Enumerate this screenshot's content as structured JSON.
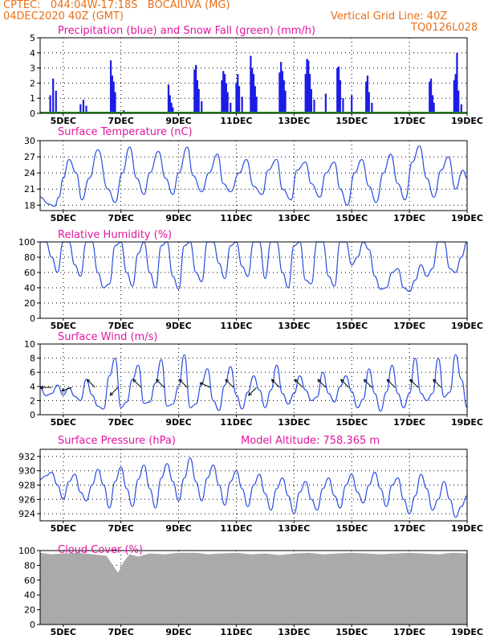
{
  "header": {
    "line1": "CPTEC:   044:04W-17:18S   BOCAIUVA (MG)",
    "line2": "04DEC2020 40Z (GMT)",
    "grid_line": "Vertical Grid Line: 40Z",
    "code": "TQ0126L028"
  },
  "colors": {
    "header": "#e8701a",
    "title": "#e0169e",
    "line": "#2b4ee0",
    "precip": "#1c1ce6",
    "snow": "#1f9e1f",
    "cloud": "#aaaaaa"
  },
  "x_ticks": [
    "5DEC",
    "7DEC",
    "9DEC",
    "11DEC",
    "13DEC",
    "15DEC",
    "17DEC",
    "19DEC"
  ],
  "x_tick_days": [
    5,
    7,
    9,
    11,
    13,
    15,
    17,
    19
  ],
  "x_range": [
    4.2,
    19.0
  ],
  "chart_data": [
    {
      "type": "bar",
      "title": "Precipitation (blue) and Snow Fall (green) (mm/h)",
      "ylim": [
        0,
        5
      ],
      "yticks": [
        0,
        1,
        2,
        3,
        4,
        5
      ],
      "x": [
        4.55,
        4.65,
        4.75,
        5.6,
        5.7,
        5.8,
        6.65,
        6.7,
        6.75,
        6.8,
        7.1,
        8.65,
        8.7,
        8.75,
        8.8,
        9.55,
        9.6,
        9.65,
        9.7,
        9.8,
        10.5,
        10.55,
        10.6,
        10.65,
        10.7,
        10.8,
        11.0,
        11.05,
        11.1,
        11.2,
        11.5,
        11.55,
        11.6,
        11.65,
        11.7,
        12.5,
        12.55,
        12.6,
        12.65,
        12.7,
        13.4,
        13.45,
        13.5,
        13.55,
        13.6,
        13.7,
        14.1,
        14.5,
        14.55,
        14.6,
        14.7,
        15.0,
        15.5,
        15.55,
        15.6,
        15.7,
        17.7,
        17.75,
        17.8,
        17.85,
        18.55,
        18.6,
        18.65,
        18.7,
        18.8
      ],
      "values": [
        1.2,
        2.3,
        1.5,
        0.6,
        0.9,
        0.5,
        3.5,
        2.5,
        2.1,
        1.4,
        0.2,
        1.9,
        1.2,
        0.7,
        0.4,
        2.9,
        3.2,
        2.2,
        1.6,
        0.8,
        2.2,
        2.8,
        2.6,
        2.0,
        1.4,
        0.7,
        2.0,
        2.6,
        1.8,
        1.1,
        3.8,
        3.0,
        2.6,
        1.8,
        1.1,
        2.7,
        3.4,
        2.8,
        2.2,
        1.5,
        2.6,
        3.6,
        3.5,
        2.6,
        1.6,
        0.9,
        1.3,
        3.0,
        3.1,
        2.2,
        1.0,
        1.2,
        2.1,
        2.5,
        1.4,
        0.7,
        2.1,
        2.3,
        1.2,
        0.7,
        2.2,
        2.6,
        4.0,
        1.5,
        0.6
      ],
      "snow": 0
    },
    {
      "type": "line",
      "title": "Surface Temperature (nC)",
      "ylim": [
        17,
        30
      ],
      "yticks": [
        18,
        21,
        24,
        27,
        30
      ],
      "x": [
        4.2,
        4.5,
        4.7,
        4.85,
        5.0,
        5.2,
        5.45,
        5.65,
        5.9,
        6.2,
        6.55,
        6.8,
        7.05,
        7.3,
        7.55,
        7.8,
        8.0,
        8.3,
        8.55,
        8.8,
        9.0,
        9.3,
        9.5,
        9.8,
        10.05,
        10.35,
        10.55,
        10.8,
        11.1,
        11.35,
        11.6,
        11.9,
        12.1,
        12.4,
        12.6,
        12.9,
        13.1,
        13.4,
        13.6,
        13.9,
        14.1,
        14.4,
        14.6,
        14.85,
        15.1,
        15.35,
        15.6,
        15.85,
        16.1,
        16.35,
        16.6,
        16.85,
        17.1,
        17.35,
        17.6,
        17.85,
        18.1,
        18.35,
        18.6,
        18.85,
        19.0
      ],
      "values": [
        19.5,
        18.2,
        17.8,
        19.5,
        23.0,
        26.5,
        24.0,
        19.0,
        23.0,
        28.3,
        21.0,
        18.5,
        24.0,
        28.8,
        23.0,
        20.0,
        24.0,
        28.0,
        23.0,
        20.0,
        24.0,
        28.8,
        23.5,
        20.5,
        24.0,
        27.5,
        22.0,
        20.5,
        24.0,
        26.5,
        21.5,
        20.0,
        24.5,
        26.5,
        21.0,
        19.0,
        24.5,
        26.0,
        22.0,
        19.5,
        24.0,
        26.0,
        21.0,
        18.0,
        24.0,
        26.5,
        21.5,
        18.5,
        24.0,
        27.5,
        22.0,
        19.0,
        26.0,
        29.0,
        23.0,
        19.5,
        24.5,
        27.0,
        21.0,
        24.5,
        23.0
      ]
    },
    {
      "type": "line",
      "title": "Relative Humidity (%)",
      "ylim": [
        0,
        100
      ],
      "yticks": [
        0,
        20,
        40,
        60,
        80,
        100
      ],
      "x": [
        4.2,
        4.4,
        4.6,
        4.8,
        5.0,
        5.2,
        5.4,
        5.6,
        5.8,
        6.0,
        6.2,
        6.4,
        6.6,
        6.8,
        7.0,
        7.2,
        7.4,
        7.6,
        7.8,
        8.0,
        8.2,
        8.4,
        8.6,
        8.8,
        9.0,
        9.2,
        9.4,
        9.6,
        9.8,
        10.0,
        10.2,
        10.4,
        10.6,
        10.8,
        11.0,
        11.2,
        11.4,
        11.6,
        11.8,
        12.0,
        12.2,
        12.4,
        12.6,
        12.8,
        13.0,
        13.2,
        13.4,
        13.6,
        13.8,
        14.0,
        14.2,
        14.4,
        14.6,
        14.8,
        15.0,
        15.2,
        15.4,
        15.6,
        15.8,
        16.0,
        16.2,
        16.4,
        16.6,
        16.8,
        17.0,
        17.2,
        17.4,
        17.6,
        17.8,
        18.0,
        18.2,
        18.4,
        18.6,
        18.8,
        19.0
      ],
      "values": [
        100,
        100,
        80,
        60,
        100,
        100,
        70,
        55,
        100,
        100,
        60,
        40,
        45,
        95,
        100,
        60,
        42,
        85,
        100,
        60,
        40,
        95,
        100,
        55,
        38,
        95,
        100,
        60,
        48,
        100,
        100,
        72,
        52,
        95,
        100,
        68,
        55,
        100,
        100,
        52,
        100,
        100,
        60,
        40,
        95,
        100,
        50,
        45,
        100,
        100,
        55,
        42,
        100,
        100,
        70,
        80,
        100,
        90,
        55,
        38,
        40,
        60,
        65,
        40,
        35,
        50,
        70,
        55,
        65,
        100,
        100,
        65,
        60,
        80,
        100
      ]
    },
    {
      "type": "line",
      "title": "Surface Wind (m/s)",
      "ylim": [
        0,
        10
      ],
      "yticks": [
        0,
        2,
        4,
        6,
        8,
        10
      ],
      "x": [
        4.2,
        4.4,
        4.6,
        4.8,
        5.0,
        5.2,
        5.4,
        5.6,
        5.8,
        6.0,
        6.2,
        6.4,
        6.6,
        6.8,
        7.0,
        7.2,
        7.4,
        7.6,
        7.8,
        8.0,
        8.2,
        8.4,
        8.6,
        8.8,
        9.0,
        9.2,
        9.4,
        9.6,
        9.8,
        10.0,
        10.2,
        10.4,
        10.6,
        10.8,
        11.0,
        11.2,
        11.4,
        11.6,
        11.8,
        12.0,
        12.2,
        12.4,
        12.6,
        12.8,
        13.0,
        13.2,
        13.4,
        13.6,
        13.8,
        14.0,
        14.2,
        14.4,
        14.6,
        14.8,
        15.0,
        15.2,
        15.4,
        15.6,
        15.8,
        16.0,
        16.2,
        16.4,
        16.6,
        16.8,
        17.0,
        17.2,
        17.4,
        17.6,
        17.8,
        18.0,
        18.2,
        18.4,
        18.6,
        18.8,
        19.0
      ],
      "values": [
        3.8,
        2.7,
        3.0,
        4.2,
        2.8,
        3.8,
        2.6,
        2.0,
        5.0,
        2.8,
        1.2,
        0.8,
        5.5,
        8.0,
        1.0,
        1.8,
        5.0,
        7.0,
        1.6,
        1.8,
        4.5,
        7.8,
        1.2,
        1.5,
        4.0,
        8.5,
        1.0,
        1.5,
        4.5,
        6.5,
        2.0,
        0.6,
        4.2,
        6.8,
        2.8,
        0.8,
        3.2,
        5.5,
        3.5,
        1.0,
        3.5,
        7.0,
        3.0,
        1.5,
        3.0,
        5.5,
        3.5,
        2.0,
        2.5,
        6.0,
        3.0,
        1.8,
        4.0,
        5.5,
        3.3,
        1.0,
        2.2,
        6.5,
        3.0,
        0.5,
        3.2,
        7.0,
        3.0,
        1.0,
        3.0,
        8.0,
        3.0,
        2.0,
        3.0,
        8.0,
        2.5,
        3.2,
        8.5,
        5.0,
        1.0
      ],
      "arrows": [
        {
          "day": 4.6,
          "dx": -1,
          "dy": 0
        },
        {
          "day": 5.3,
          "dx": -0.9,
          "dy": -0.3
        },
        {
          "day": 6.1,
          "dx": -0.7,
          "dy": 0.7
        },
        {
          "day": 6.9,
          "dx": -0.7,
          "dy": -0.7
        },
        {
          "day": 7.7,
          "dx": -0.7,
          "dy": 0.7
        },
        {
          "day": 8.5,
          "dx": -0.7,
          "dy": 0.7
        },
        {
          "day": 9.3,
          "dx": -0.7,
          "dy": 0.7
        },
        {
          "day": 10.1,
          "dx": -0.9,
          "dy": 0.4
        },
        {
          "day": 10.9,
          "dx": -0.7,
          "dy": 0.7
        },
        {
          "day": 11.7,
          "dx": -0.7,
          "dy": -0.7
        },
        {
          "day": 12.5,
          "dx": -0.7,
          "dy": 0.7
        },
        {
          "day": 13.3,
          "dx": -0.7,
          "dy": 0.7
        },
        {
          "day": 14.1,
          "dx": -0.7,
          "dy": 0.7
        },
        {
          "day": 14.9,
          "dx": -0.7,
          "dy": 0.7
        },
        {
          "day": 15.7,
          "dx": -0.7,
          "dy": 0.7
        },
        {
          "day": 16.5,
          "dx": -0.7,
          "dy": 0.7
        },
        {
          "day": 17.3,
          "dx": -0.7,
          "dy": 0.7
        },
        {
          "day": 18.1,
          "dx": -0.7,
          "dy": 0.7
        }
      ]
    },
    {
      "type": "line",
      "title": "Surface Pressure (hPa)",
      "subtitle": "Model Altitude: 758.365 m",
      "ylim": [
        923,
        933
      ],
      "yticks": [
        924,
        926,
        928,
        930,
        932
      ],
      "x": [
        4.2,
        4.4,
        4.6,
        4.8,
        5.0,
        5.2,
        5.4,
        5.6,
        5.8,
        6.0,
        6.2,
        6.4,
        6.6,
        6.8,
        7.0,
        7.2,
        7.4,
        7.6,
        7.8,
        8.0,
        8.2,
        8.4,
        8.6,
        8.8,
        9.0,
        9.2,
        9.4,
        9.6,
        9.8,
        10.0,
        10.2,
        10.4,
        10.6,
        10.8,
        11.0,
        11.2,
        11.4,
        11.6,
        11.8,
        12.0,
        12.2,
        12.4,
        12.6,
        12.8,
        13.0,
        13.2,
        13.4,
        13.6,
        13.8,
        14.0,
        14.2,
        14.4,
        14.6,
        14.8,
        15.0,
        15.2,
        15.4,
        15.6,
        15.8,
        16.0,
        16.2,
        16.4,
        16.6,
        16.8,
        17.0,
        17.2,
        17.4,
        17.6,
        17.8,
        18.0,
        18.2,
        18.4,
        18.6,
        18.8,
        19.0
      ],
      "values": [
        928.8,
        929.3,
        929.8,
        928.0,
        926.0,
        928.5,
        929.5,
        927.0,
        925.8,
        928.0,
        930.2,
        928.0,
        924.8,
        928.5,
        930.5,
        927.5,
        925.0,
        928.8,
        930.8,
        927.5,
        924.8,
        929.0,
        931.0,
        928.5,
        925.8,
        929.0,
        931.8,
        928.5,
        925.8,
        929.0,
        930.8,
        928.0,
        925.2,
        928.5,
        930.0,
        927.5,
        925.0,
        928.0,
        929.5,
        926.8,
        924.5,
        927.5,
        929.0,
        926.5,
        924.0,
        927.0,
        928.5,
        926.0,
        924.5,
        927.5,
        929.0,
        926.5,
        924.8,
        928.0,
        929.5,
        927.0,
        925.5,
        928.0,
        929.8,
        927.5,
        925.0,
        928.0,
        929.0,
        926.0,
        924.0,
        926.5,
        929.5,
        927.5,
        924.5,
        926.0,
        928.5,
        926.0,
        923.5,
        925.0,
        926.5
      ]
    },
    {
      "type": "area",
      "title": "Cloud Cover (%)",
      "ylim": [
        0,
        100
      ],
      "yticks": [
        0,
        20,
        40,
        60,
        80,
        100
      ],
      "x": [
        4.2,
        4.6,
        5.0,
        5.5,
        6.0,
        6.5,
        6.9,
        7.1,
        7.3,
        7.6,
        8.0,
        8.5,
        9.0,
        9.5,
        9.6,
        10.0,
        10.5,
        11.0,
        11.5,
        12.0,
        12.5,
        13.0,
        13.5,
        14.0,
        14.5,
        15.0,
        15.5,
        16.0,
        16.5,
        17.0,
        17.5,
        18.0,
        18.5,
        19.0
      ],
      "values": [
        97,
        95,
        96,
        97,
        95,
        93,
        70,
        85,
        95,
        92,
        96,
        95,
        97,
        97,
        97,
        95,
        96,
        97,
        95,
        96,
        94,
        96,
        97,
        95,
        96,
        97,
        96,
        95,
        96,
        97,
        96,
        95,
        97,
        96
      ]
    }
  ]
}
